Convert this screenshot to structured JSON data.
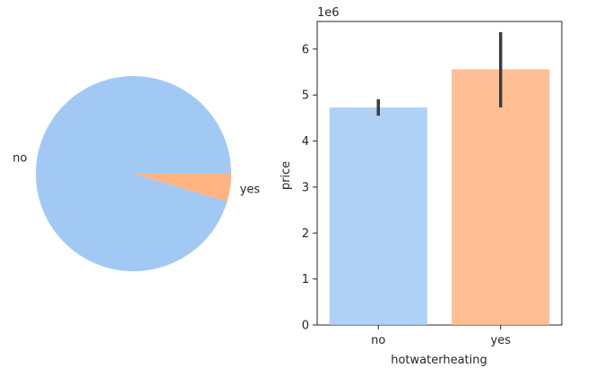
{
  "chart_data": [
    {
      "type": "pie",
      "labels": [
        "no",
        "yes"
      ],
      "values": [
        95.4,
        4.6
      ],
      "colors": [
        "#a1c9f4",
        "#ffb482"
      ],
      "start_angle_deg": 0,
      "direction": "counterclockwise"
    },
    {
      "type": "bar",
      "categories": [
        "no",
        "yes"
      ],
      "values": [
        4.73,
        5.56
      ],
      "error_bars": [
        [
          4.55,
          4.91
        ],
        [
          4.73,
          6.37
        ]
      ],
      "colors": [
        "#a1c9f4",
        "#ffb482"
      ],
      "xlabel": "hotwaterheating",
      "ylabel": "price",
      "y_multiplier_label": "1e6",
      "ylim": [
        0,
        6.6
      ],
      "yticks": [
        "0",
        "1",
        "2",
        "3",
        "4",
        "5",
        "6"
      ],
      "grid": false
    }
  ]
}
